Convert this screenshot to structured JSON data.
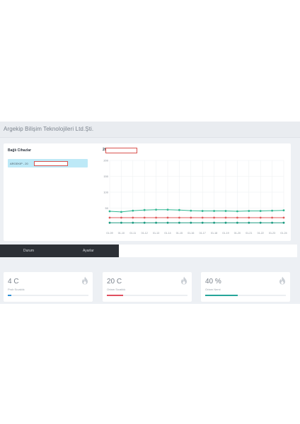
{
  "header": {
    "brand": "Argekip Bilişim Teknolojileri Ltd.Şti."
  },
  "devices": {
    "title": "Bağlı Cihazlar",
    "items": [
      {
        "label": "ARGEKIP - 20"
      }
    ]
  },
  "chart_data": {
    "type": "line",
    "title": "20",
    "xlabel": "",
    "ylabel": "",
    "ylim": [
      0,
      200
    ],
    "yticks": [
      50,
      100,
      150,
      200
    ],
    "categories": [
      "01-09",
      "01-10",
      "01-11",
      "01-12",
      "01-13",
      "01-14",
      "01-15",
      "01-16",
      "01-17",
      "01-18",
      "01-19",
      "01-20",
      "01-21",
      "01-22",
      "01-23",
      "01-24"
    ],
    "grid": true,
    "series": [
      {
        "color": "#2fb792",
        "values": [
          40,
          38,
          42,
          44,
          45,
          45,
          44,
          42,
          41,
          41,
          41,
          40,
          41,
          41,
          42,
          43
        ]
      },
      {
        "color": "#e05a5a",
        "values": [
          20,
          20,
          20,
          20,
          20,
          20,
          20,
          20,
          20,
          20,
          20,
          20,
          20,
          20,
          20,
          20
        ]
      },
      {
        "color": "#1e9c82",
        "values": [
          4,
          4,
          4,
          4,
          4,
          4,
          4,
          4,
          4,
          4,
          4,
          4,
          4,
          4,
          4,
          4
        ]
      }
    ]
  },
  "tabs": [
    {
      "label": "Durum"
    },
    {
      "label": "Ayarlar"
    }
  ],
  "cards": [
    {
      "value": "4 C",
      "label": "Prob Sıcaklık",
      "icon": "fire-icon",
      "progress": 0.04,
      "color": "#2d8fd6"
    },
    {
      "value": "20 C",
      "label": "Ortam Sıcaklık",
      "icon": "fire-icon",
      "progress": 0.2,
      "color": "#e04f5f"
    },
    {
      "value": "40 %",
      "label": "Ortam Nemi",
      "icon": "fire-icon",
      "progress": 0.4,
      "color": "#26a69a"
    }
  ]
}
